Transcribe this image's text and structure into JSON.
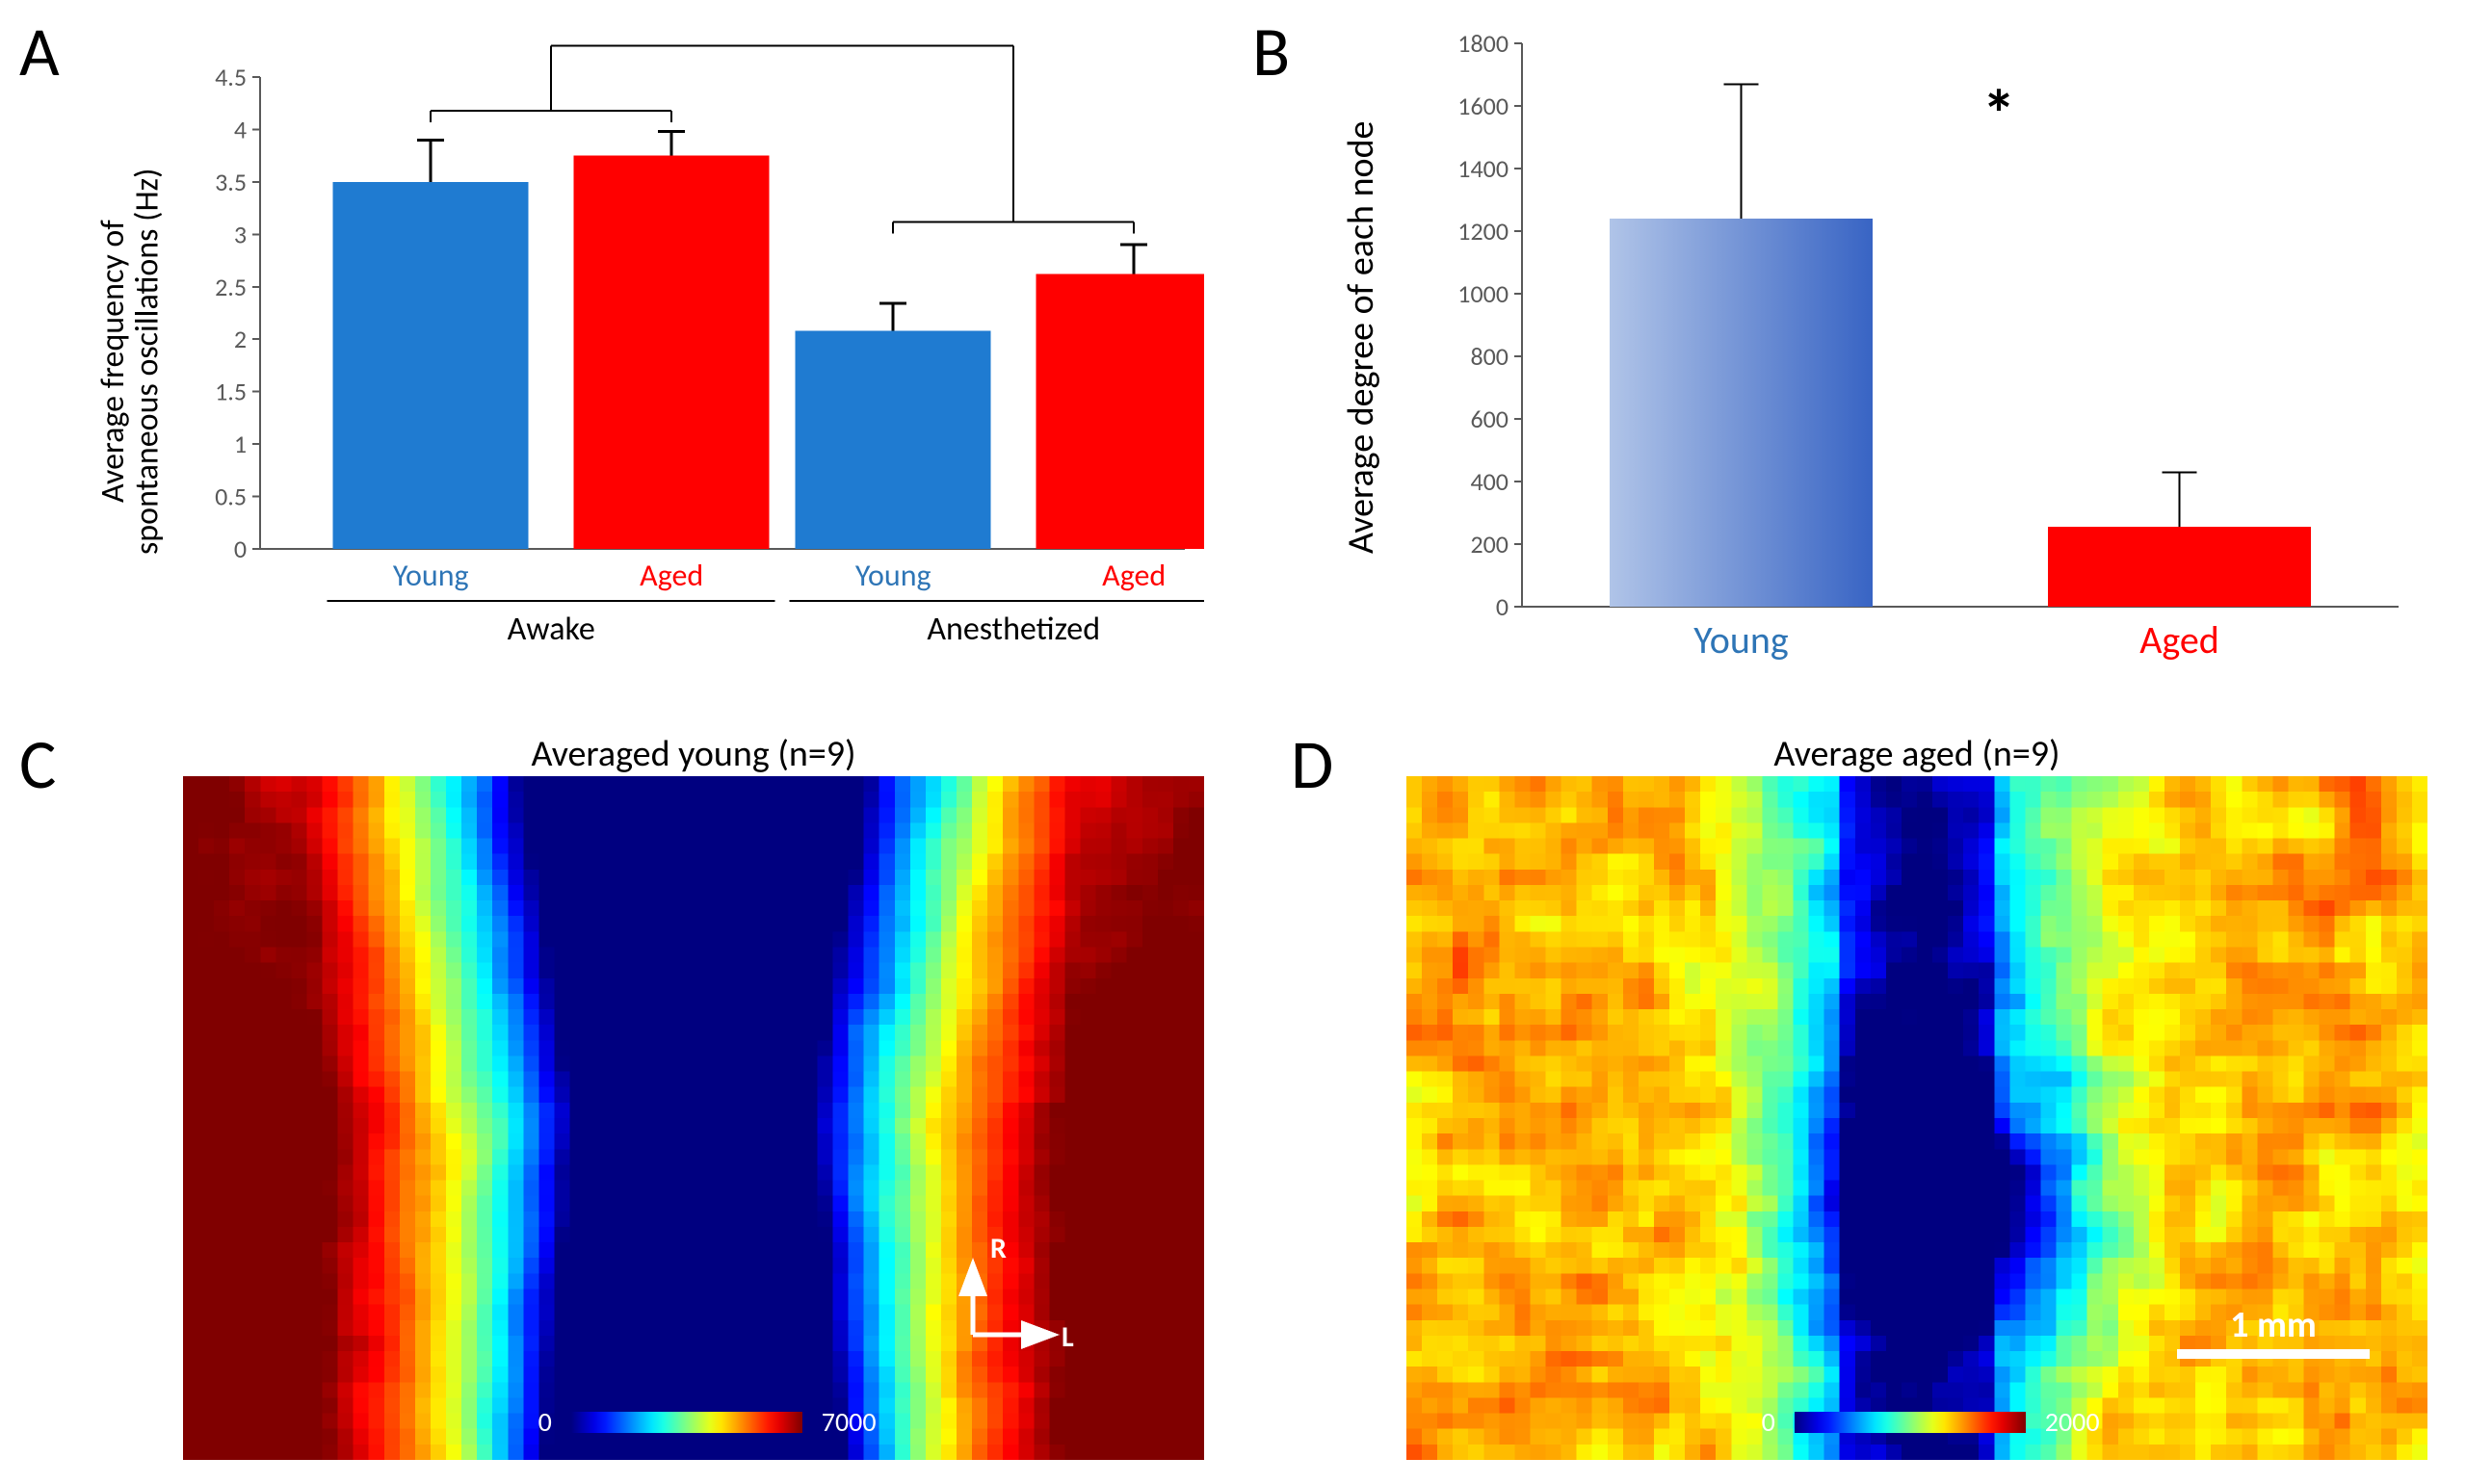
{
  "panel_labels": {
    "A": "A",
    "B": "B",
    "C": "C",
    "D": "D"
  },
  "panelA": {
    "type": "bar",
    "y_axis_title": "Average frequency of\nspontaneous oscillations (Hz)",
    "ylim": [
      0,
      4.5
    ],
    "ytick_step": 0.5,
    "yticks": [
      "0",
      "0.5",
      "1",
      "1.5",
      "2",
      "2.5",
      "3",
      "3.5",
      "4",
      "4.5"
    ],
    "groups": [
      "Awake",
      "Anesthetized"
    ],
    "sub_labels": [
      "Young",
      "Aged",
      "Young",
      "Aged"
    ],
    "sub_label_colors": [
      "#2e75b6",
      "#ff0000",
      "#2e75b6",
      "#ff0000"
    ],
    "bars": [
      {
        "value": 3.5,
        "err": 0.4,
        "color": "#1f7bd1"
      },
      {
        "value": 3.75,
        "err": 0.23,
        "color": "#ff0000"
      },
      {
        "value": 2.08,
        "err": 0.26,
        "color": "#1f7bd1"
      },
      {
        "value": 2.62,
        "err": 0.28,
        "color": "#ff0000"
      }
    ],
    "bar_width": 0.7,
    "axis_color": "#595959",
    "tick_font_size": 26,
    "label_font_size": 34,
    "significance_marker": "*"
  },
  "panelB": {
    "type": "bar",
    "y_axis_title": "Average degree of each node",
    "ylim": [
      0,
      1800
    ],
    "ytick_step": 200,
    "yticks": [
      "0",
      "200",
      "400",
      "600",
      "800",
      "1000",
      "1200",
      "1400",
      "1600",
      "1800"
    ],
    "sub_labels": [
      "Young",
      "Aged"
    ],
    "sub_label_colors": [
      "#2e75b6",
      "#ff0000"
    ],
    "bars": [
      {
        "value": 1240,
        "err": 430,
        "color_from": "#b0c4e8",
        "color_to": "#3864c4"
      },
      {
        "value": 255,
        "err": 175,
        "color": "#ff0000"
      }
    ],
    "bar_width": 0.6,
    "axis_color": "#595959",
    "tick_font_size": 26,
    "label_font_size": 38,
    "significance_marker": "*"
  },
  "panelC": {
    "type": "heatmap",
    "title": "Averaged young (n=9)",
    "colorbar_min_label": "0",
    "colorbar_max_label": "7000",
    "direction_labels": {
      "up": "R",
      "right": "L"
    }
  },
  "panelD": {
    "type": "heatmap",
    "title": "Average aged (n=9)",
    "colorbar_min_label": "0",
    "colorbar_max_label": "2000",
    "scale_bar_label": "1 mm"
  },
  "colors": {
    "young": "#1f7bd1",
    "aged": "#ff0000",
    "axis": "#595959",
    "text_black": "#000000"
  }
}
